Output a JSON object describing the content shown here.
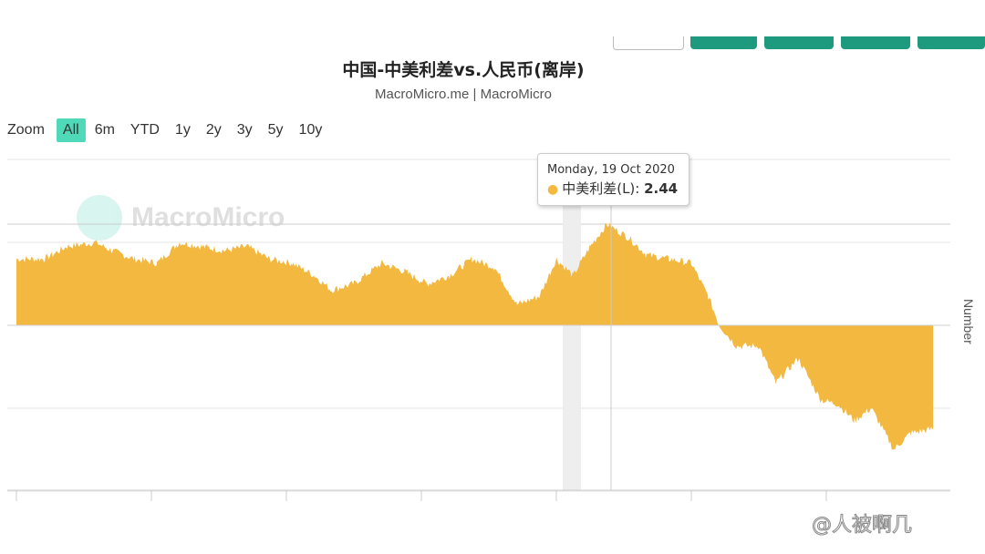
{
  "top_buttons": {
    "count_green": 4
  },
  "title": "中国-中美利差vs.人民币(离岸)",
  "subtitle": "MacroMicro.me | MacroMicro",
  "zoom": {
    "label": "Zoom",
    "options": [
      "All",
      "6m",
      "YTD",
      "1y",
      "2y",
      "3y",
      "5y",
      "10y"
    ],
    "active": "All"
  },
  "tooltip": {
    "date": "Monday, 19 Oct 2020",
    "series": "中美利差(L)",
    "value": "2.44"
  },
  "watermark_logo": "MacroMicro",
  "corner_watermark": "@人被啊几",
  "colors": {
    "area": "#f2b840",
    "accent": "#4fd9b9",
    "buttons": "#1e9a7e"
  },
  "chart_data": {
    "type": "area",
    "ylabel": "Number",
    "ylim": [
      -4,
      4
    ],
    "grid": true,
    "series": [
      {
        "name": "中美利差(L)",
        "x": [
          "2012-01",
          "2012-06",
          "2012-10",
          "2013-03",
          "2013-06",
          "2013-10",
          "2014-02",
          "2014-06",
          "2014-10",
          "2015-02",
          "2015-06",
          "2015-10",
          "2016-02",
          "2016-06",
          "2016-09",
          "2017-01",
          "2017-06",
          "2017-10",
          "2018-02",
          "2018-06",
          "2018-10",
          "2019-02",
          "2019-06",
          "2019-10",
          "2020-01",
          "2020-04",
          "2020-07",
          "2020-10",
          "2021-02",
          "2021-05",
          "2021-09",
          "2022-01",
          "2022-04",
          "2022-06",
          "2022-09",
          "2023-01",
          "2023-04",
          "2023-08",
          "2023-12",
          "2024-03",
          "2024-06",
          "2024-09",
          "2025-01",
          "2025-04",
          "2025-08"
        ],
        "values": [
          1.6,
          1.6,
          1.9,
          2.0,
          1.8,
          1.6,
          1.5,
          2.0,
          1.9,
          1.8,
          1.9,
          1.6,
          1.5,
          1.2,
          0.85,
          1.0,
          1.5,
          1.3,
          1.0,
          1.2,
          1.6,
          1.4,
          0.5,
          0.7,
          1.6,
          1.2,
          1.9,
          2.44,
          2.1,
          1.7,
          1.6,
          1.5,
          0.7,
          0.0,
          -0.5,
          -0.5,
          -1.4,
          -0.8,
          -1.8,
          -1.9,
          -2.3,
          -2.0,
          -3.0,
          -2.6,
          -2.5
        ]
      }
    ]
  }
}
